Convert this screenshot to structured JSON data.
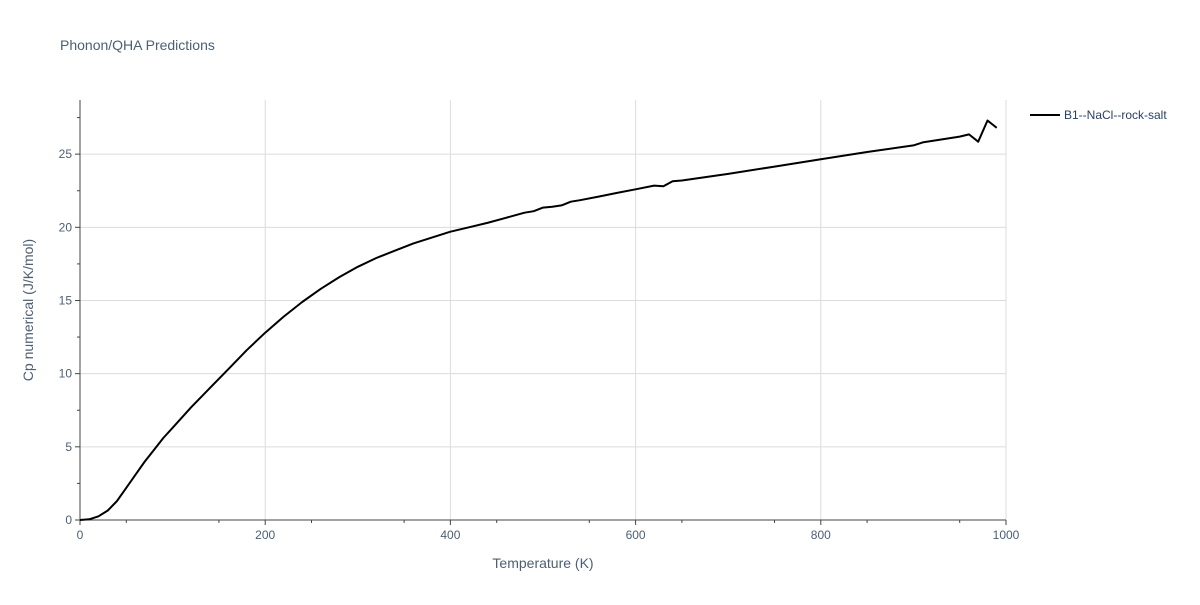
{
  "chart_data": {
    "type": "line",
    "title": "Phonon/QHA Predictions",
    "xlabel": "Temperature (K)",
    "ylabel": "Cp numerical (J/K/mol)",
    "xlim": [
      0,
      1000
    ],
    "ylim": [
      0,
      28.7
    ],
    "xticks": [
      "0",
      "200",
      "400",
      "600",
      "800",
      "1000"
    ],
    "yticks": [
      "0",
      "5",
      "10",
      "15",
      "20",
      "25"
    ],
    "grid": true,
    "legend_position": "top-right",
    "series": [
      {
        "name": "B1--NaCl--rock-salt",
        "color": "#000000",
        "x": [
          0,
          10,
          20,
          30,
          40,
          50,
          60,
          70,
          80,
          90,
          100,
          120,
          140,
          160,
          180,
          200,
          220,
          240,
          260,
          280,
          300,
          320,
          340,
          360,
          380,
          400,
          420,
          440,
          460,
          480,
          490,
          500,
          510,
          520,
          530,
          540,
          560,
          580,
          600,
          620,
          630,
          640,
          650,
          700,
          750,
          800,
          850,
          900,
          910,
          950,
          960,
          970,
          980,
          990
        ],
        "y": [
          0,
          0.05,
          0.25,
          0.65,
          1.3,
          2.2,
          3.1,
          4.0,
          4.8,
          5.6,
          6.3,
          7.7,
          9.0,
          10.3,
          11.6,
          12.8,
          13.9,
          14.9,
          15.8,
          16.6,
          17.3,
          17.9,
          18.4,
          18.9,
          19.3,
          19.7,
          20.0,
          20.3,
          20.65,
          21.0,
          21.1,
          21.35,
          21.4,
          21.5,
          21.75,
          21.85,
          22.1,
          22.35,
          22.6,
          22.85,
          22.8,
          23.15,
          23.2,
          23.65,
          24.15,
          24.65,
          25.15,
          25.6,
          25.8,
          26.2,
          26.35,
          25.85,
          27.3,
          26.8
        ]
      }
    ]
  }
}
